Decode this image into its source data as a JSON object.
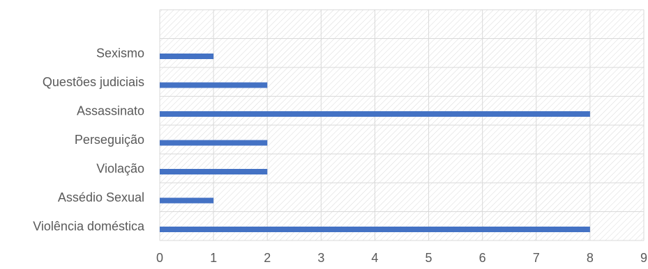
{
  "chart_data": {
    "type": "bar",
    "orientation": "horizontal",
    "categories": [
      "Violência doméstica",
      "Assédio Sexual",
      "Violação",
      "Perseguição",
      "Assassinato",
      "Questões judiciais",
      "Sexismo"
    ],
    "values": [
      8,
      1,
      2,
      2,
      8,
      2,
      1
    ],
    "xlim": [
      0,
      9
    ],
    "xticks": [
      0,
      1,
      2,
      3,
      4,
      5,
      6,
      7,
      8,
      9
    ],
    "grid": true,
    "legend": "none",
    "title": "",
    "xlabel": "",
    "ylabel": ""
  },
  "colors": {
    "bar": "#4472C4",
    "grid": "#D9D9D9",
    "hatch": "#D9D9D9",
    "text": "#595959"
  }
}
